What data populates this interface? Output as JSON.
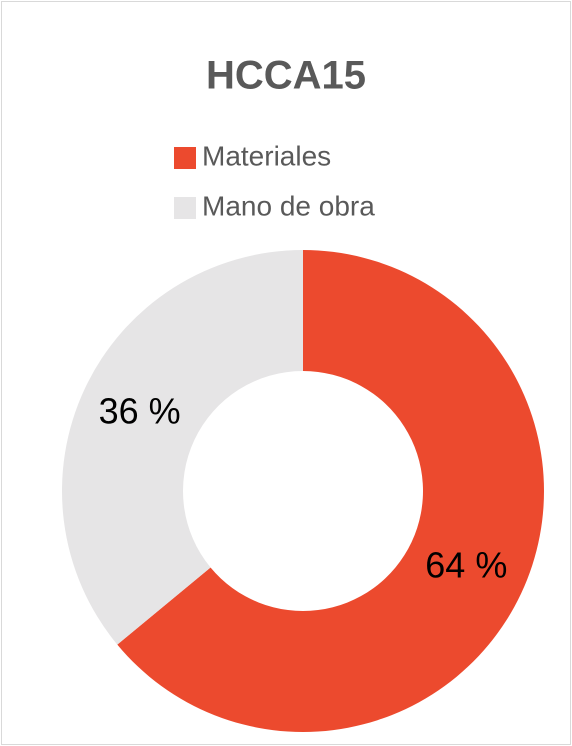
{
  "chart_data": {
    "type": "donut",
    "title": "HCCA15",
    "categories": [
      "Materiales",
      "Mano de obra"
    ],
    "values": [
      64,
      36
    ],
    "value_labels": [
      "64 %",
      "36 %"
    ],
    "colors": [
      "#ec4a2e",
      "#e6e5e6"
    ],
    "legend": "top"
  }
}
